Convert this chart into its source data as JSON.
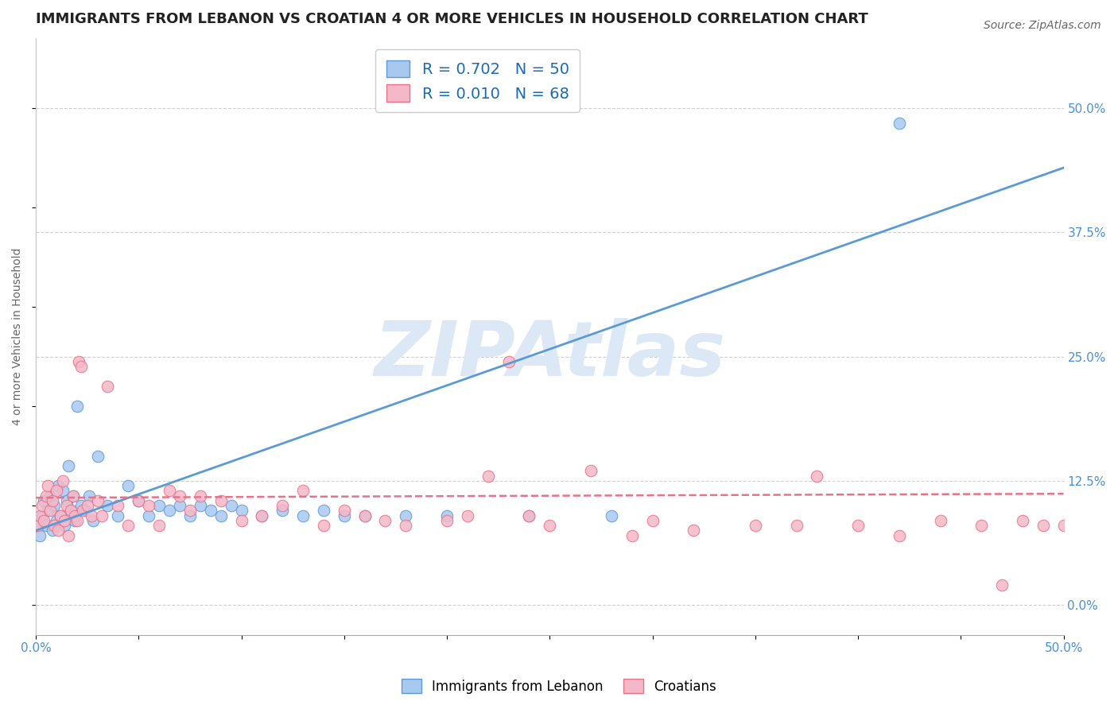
{
  "title": "IMMIGRANTS FROM LEBANON VS CROATIAN 4 OR MORE VEHICLES IN HOUSEHOLD CORRELATION CHART",
  "source_text": "Source: ZipAtlas.com",
  "ylabel": "4 or more Vehicles in Household",
  "xlim": [
    0.0,
    50.0
  ],
  "ylim": [
    -3.0,
    57.0
  ],
  "yticks_right": [
    0.0,
    12.5,
    25.0,
    37.5,
    50.0
  ],
  "ytick_right_labels": [
    "0.0%",
    "12.5%",
    "25.0%",
    "37.5%",
    "50.0%"
  ],
  "blue_R": 0.702,
  "blue_N": 50,
  "pink_R": 0.01,
  "pink_N": 68,
  "blue_color": "#a8c8f0",
  "pink_color": "#f5b8c8",
  "blue_edge_color": "#5b9bd5",
  "pink_edge_color": "#e8728a",
  "blue_line_color": "#5b9bd5",
  "pink_line_color": "#e8728a",
  "watermark_text": "ZIPAtlas",
  "watermark_color": "#dce8f5",
  "legend_label_blue": "Immigrants from Lebanon",
  "legend_label_pink": "Croatians",
  "title_fontsize": 13,
  "grid_color": "#d0d0d0",
  "background_color": "#ffffff",
  "blue_scatter_x": [
    0.1,
    0.2,
    0.3,
    0.4,
    0.5,
    0.6,
    0.7,
    0.8,
    0.9,
    1.0,
    1.1,
    1.2,
    1.3,
    1.4,
    1.5,
    1.6,
    1.7,
    1.8,
    1.9,
    2.0,
    2.2,
    2.4,
    2.6,
    2.8,
    3.0,
    3.5,
    4.0,
    4.5,
    5.0,
    5.5,
    6.0,
    6.5,
    7.0,
    7.5,
    8.0,
    8.5,
    9.0,
    9.5,
    10.0,
    11.0,
    12.0,
    13.0,
    14.0,
    15.0,
    16.0,
    18.0,
    20.0,
    24.0,
    28.0,
    42.0
  ],
  "blue_scatter_y": [
    8.5,
    7.0,
    9.0,
    10.5,
    8.0,
    9.5,
    11.0,
    7.5,
    10.0,
    8.5,
    12.0,
    9.0,
    11.5,
    8.0,
    10.5,
    14.0,
    9.5,
    11.0,
    8.5,
    20.0,
    10.0,
    9.5,
    11.0,
    8.5,
    15.0,
    10.0,
    9.0,
    12.0,
    10.5,
    9.0,
    10.0,
    9.5,
    10.0,
    9.0,
    10.0,
    9.5,
    9.0,
    10.0,
    9.5,
    9.0,
    9.5,
    9.0,
    9.5,
    9.0,
    9.0,
    9.0,
    9.0,
    9.0,
    9.0,
    48.5
  ],
  "pink_scatter_x": [
    0.1,
    0.2,
    0.3,
    0.4,
    0.5,
    0.6,
    0.7,
    0.8,
    0.9,
    1.0,
    1.1,
    1.2,
    1.3,
    1.4,
    1.5,
    1.6,
    1.7,
    1.8,
    1.9,
    2.0,
    2.1,
    2.2,
    2.3,
    2.5,
    2.7,
    3.0,
    3.2,
    3.5,
    4.0,
    4.5,
    5.0,
    5.5,
    6.0,
    6.5,
    7.0,
    7.5,
    8.0,
    9.0,
    10.0,
    11.0,
    12.0,
    13.0,
    14.0,
    15.0,
    16.0,
    17.0,
    18.0,
    20.0,
    21.0,
    22.0,
    23.0,
    24.0,
    25.0,
    27.0,
    29.0,
    30.0,
    32.0,
    35.0,
    37.0,
    38.0,
    40.0,
    42.0,
    44.0,
    46.0,
    47.0,
    48.0,
    49.0,
    50.0
  ],
  "pink_scatter_y": [
    8.0,
    9.0,
    10.0,
    8.5,
    11.0,
    12.0,
    9.5,
    10.5,
    8.0,
    11.5,
    7.5,
    9.0,
    12.5,
    8.5,
    10.0,
    7.0,
    9.5,
    11.0,
    9.0,
    8.5,
    24.5,
    24.0,
    9.5,
    10.0,
    9.0,
    10.5,
    9.0,
    22.0,
    10.0,
    8.0,
    10.5,
    10.0,
    8.0,
    11.5,
    11.0,
    9.5,
    11.0,
    10.5,
    8.5,
    9.0,
    10.0,
    11.5,
    8.0,
    9.5,
    9.0,
    8.5,
    8.0,
    8.5,
    9.0,
    13.0,
    24.5,
    9.0,
    8.0,
    13.5,
    7.0,
    8.5,
    7.5,
    8.0,
    8.0,
    13.0,
    8.0,
    7.0,
    8.5,
    8.0,
    2.0,
    8.5,
    8.0,
    8.0
  ],
  "blue_trend_x": [
    0.0,
    50.0
  ],
  "blue_trend_y": [
    7.5,
    44.0
  ],
  "pink_trend_x": [
    0.0,
    50.0
  ],
  "pink_trend_y": [
    10.8,
    11.2
  ]
}
